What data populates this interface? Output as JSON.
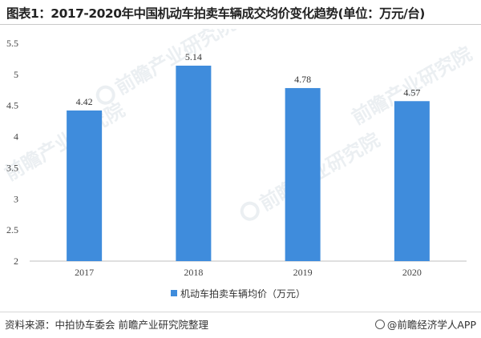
{
  "title": "图表1：2017-2020年中国机动车拍卖车辆成交均价变化趋势(单位：万元/台)",
  "chart_data": {
    "type": "bar",
    "categories": [
      "2017",
      "2018",
      "2019",
      "2020"
    ],
    "values": [
      4.42,
      5.14,
      4.78,
      4.57
    ],
    "data_labels": [
      "4.42",
      "5.14",
      "4.78",
      "4.57"
    ],
    "y_ticks": [
      "2",
      "2.5",
      "3",
      "3.5",
      "4",
      "4.5",
      "5",
      "5.5"
    ],
    "ylim": [
      2,
      5.5
    ],
    "series": [
      {
        "name": "机动车拍卖车辆均价（万元）",
        "values": [
          4.42,
          5.14,
          4.78,
          4.57
        ]
      }
    ],
    "legend_position": "bottom-center",
    "grid": false,
    "bar_color": "#3f8cdc"
  },
  "watermark": {
    "text": "前瞻产业研究院"
  },
  "footer": {
    "source": "资料来源：中拍协车委会 前瞻产业研究院整理",
    "brand": "@前瞻经济学人APP"
  }
}
